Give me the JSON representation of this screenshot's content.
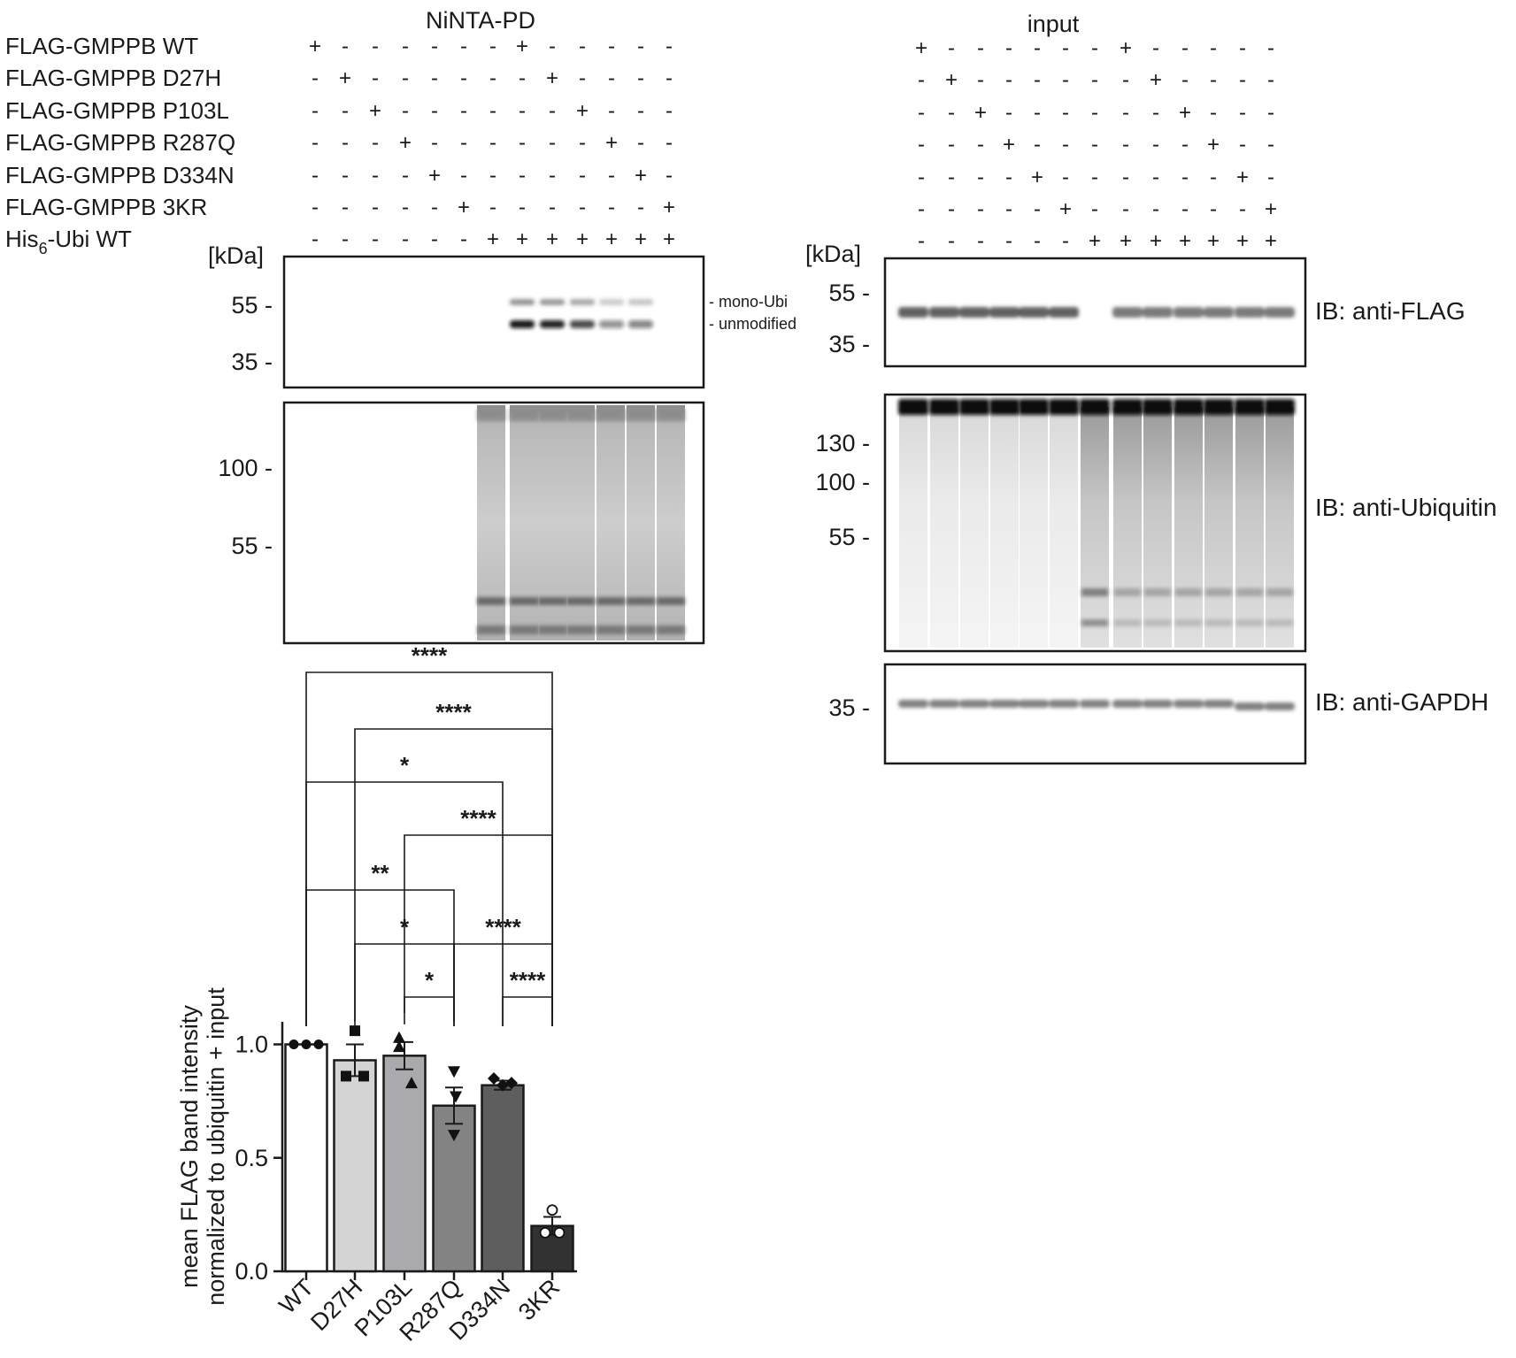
{
  "pulldown": {
    "title": "NiNTA-PD",
    "unit": "[kDa]",
    "blot_flag_ticks": [
      "55 -",
      "35 -"
    ],
    "blot_ubi_ticks": [
      "100 -",
      "55 -"
    ],
    "band_labels": [
      "- mono-Ubi",
      "- unmodified"
    ]
  },
  "input": {
    "title": "input",
    "unit": "[kDa]",
    "blot_flag_ticks": [
      "55 -",
      "35 -"
    ],
    "blot_ubi_ticks": [
      "130 -",
      "100 -",
      "55 -"
    ],
    "blot_gapdh_ticks": [
      "35 -"
    ],
    "ib_labels": [
      "IB: anti-FLAG",
      "IB: anti-Ubiquitin",
      "IB: anti-GAPDH"
    ]
  },
  "conditions": [
    {
      "label": "FLAG-GMPPB WT",
      "lanes": [
        "+",
        "-",
        "-",
        "-",
        "-",
        "-",
        "-",
        "+",
        "-",
        "-",
        "-",
        "-",
        "-"
      ]
    },
    {
      "label": "FLAG-GMPPB D27H",
      "lanes": [
        "-",
        "+",
        "-",
        "-",
        "-",
        "-",
        "-",
        "-",
        "+",
        "-",
        "-",
        "-",
        "-"
      ]
    },
    {
      "label": "FLAG-GMPPB P103L",
      "lanes": [
        "-",
        "-",
        "+",
        "-",
        "-",
        "-",
        "-",
        "-",
        "-",
        "+",
        "-",
        "-",
        "-"
      ]
    },
    {
      "label": "FLAG-GMPPB R287Q",
      "lanes": [
        "-",
        "-",
        "-",
        "+",
        "-",
        "-",
        "-",
        "-",
        "-",
        "-",
        "+",
        "-",
        "-"
      ]
    },
    {
      "label": "FLAG-GMPPB D334N",
      "lanes": [
        "-",
        "-",
        "-",
        "-",
        "+",
        "-",
        "-",
        "-",
        "-",
        "-",
        "-",
        "+",
        "-"
      ]
    },
    {
      "label": "FLAG-GMPPB 3KR",
      "lanes": [
        "-",
        "-",
        "-",
        "-",
        "-",
        "+",
        "-",
        "-",
        "-",
        "-",
        "-",
        "-",
        "+"
      ]
    },
    {
      "label_main": "His",
      "label_sub": "6",
      "label_rest": "-Ubi WT",
      "lanes": [
        "-",
        "-",
        "-",
        "-",
        "-",
        "-",
        "+",
        "+",
        "+",
        "+",
        "+",
        "+",
        "+"
      ]
    }
  ],
  "chart_data": {
    "type": "bar",
    "categories": [
      "WT",
      "D27H",
      "P103L",
      "R287Q",
      "D334N",
      "3KR"
    ],
    "values": [
      1.0,
      0.93,
      0.95,
      0.73,
      0.82,
      0.2
    ],
    "sem": [
      0.0,
      0.07,
      0.06,
      0.08,
      0.02,
      0.04
    ],
    "points": [
      [
        1.0,
        1.0,
        1.0
      ],
      [
        1.06,
        0.86,
        0.86
      ],
      [
        1.03,
        0.99,
        0.83
      ],
      [
        0.88,
        0.77,
        0.6
      ],
      [
        0.85,
        0.82,
        0.83
      ],
      [
        0.27,
        0.17,
        0.17
      ]
    ],
    "bar_colors": [
      "#ffffff",
      "#d4d4d4",
      "#a9a9ae",
      "#838383",
      "#5e5e5e",
      "#323232"
    ],
    "markers": [
      "circle",
      "square",
      "triangle",
      "triangle-down",
      "diamond",
      "open-circle"
    ],
    "ylabel": [
      "mean FLAG band intensity",
      "normalized to ubiquitin + input"
    ],
    "ylim": [
      0,
      1.1
    ],
    "yticks": [
      "0.0",
      "0.5",
      "1.0"
    ],
    "significance": [
      {
        "from": "WT",
        "to": "3KR",
        "label": "****"
      },
      {
        "from": "D27H",
        "to": "3KR",
        "label": "****"
      },
      {
        "from": "WT",
        "to": "D334N",
        "label": "*"
      },
      {
        "from": "P103L",
        "to": "3KR",
        "label": "****"
      },
      {
        "from": "WT",
        "to": "R287Q",
        "label": "**"
      },
      {
        "from": "D27H",
        "to": "R287Q",
        "label": "*"
      },
      {
        "from": "R287Q",
        "to": "3KR",
        "label": "****"
      },
      {
        "from": "P103L",
        "to": "R287Q",
        "label": "*"
      },
      {
        "from": "D334N",
        "to": "3KR",
        "label": "****"
      }
    ]
  }
}
